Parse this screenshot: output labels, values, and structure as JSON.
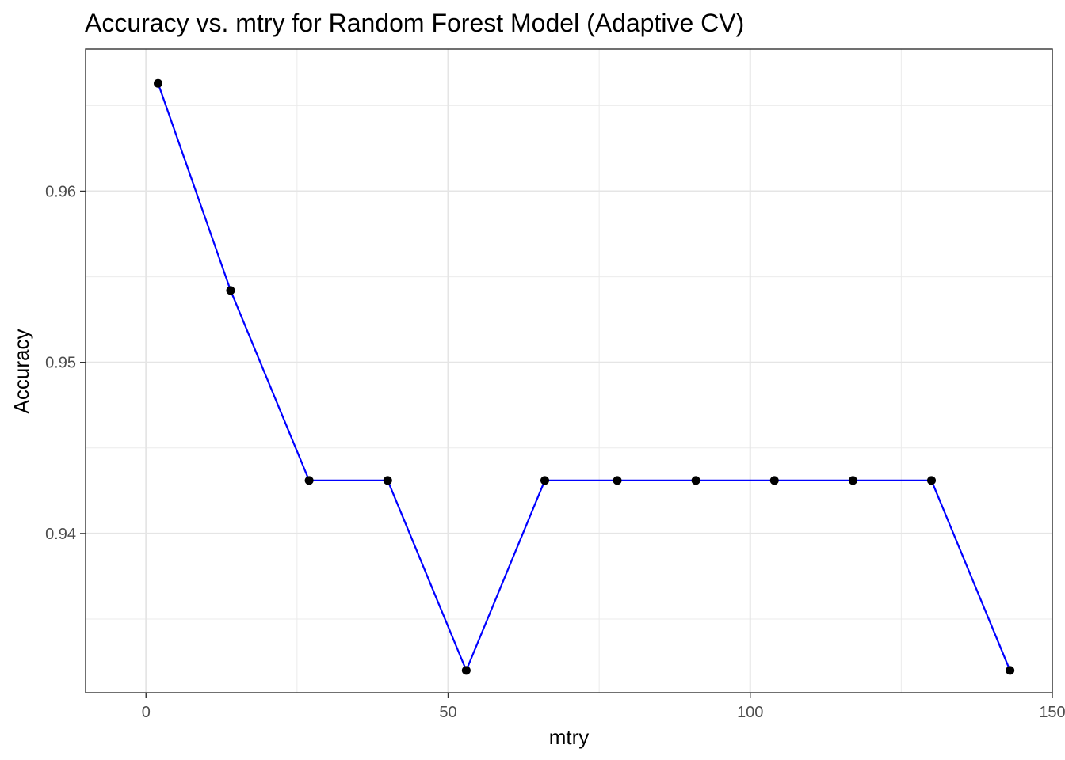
{
  "chart_data": {
    "type": "line",
    "title": "Accuracy vs. mtry for Random Forest Model (Adaptive CV)",
    "xlabel": "mtry",
    "ylabel": "Accuracy",
    "xlim": [
      -10,
      150
    ],
    "ylim": [
      0.9307,
      0.9683
    ],
    "x_ticks": [
      0,
      50,
      100,
      150
    ],
    "x_tick_labels": [
      "0",
      "50",
      "100",
      "150"
    ],
    "y_ticks": [
      0.94,
      0.95,
      0.96
    ],
    "y_tick_labels": [
      "0.94",
      "0.95",
      "0.96"
    ],
    "x_minor_ticks": [
      25,
      75,
      125
    ],
    "y_minor_ticks": [
      0.935,
      0.945,
      0.955,
      0.965
    ],
    "grid": true,
    "legend": "none",
    "series": [
      {
        "x": [
          2,
          14,
          27,
          40,
          53,
          66,
          78,
          91,
          104,
          117,
          130,
          143
        ],
        "y": [
          0.9663,
          0.9542,
          0.9431,
          0.9431,
          0.932,
          0.9431,
          0.9431,
          0.9431,
          0.9431,
          0.9431,
          0.9431,
          0.932
        ],
        "line_color": "#0000ff",
        "point_color": "#000000"
      }
    ]
  }
}
